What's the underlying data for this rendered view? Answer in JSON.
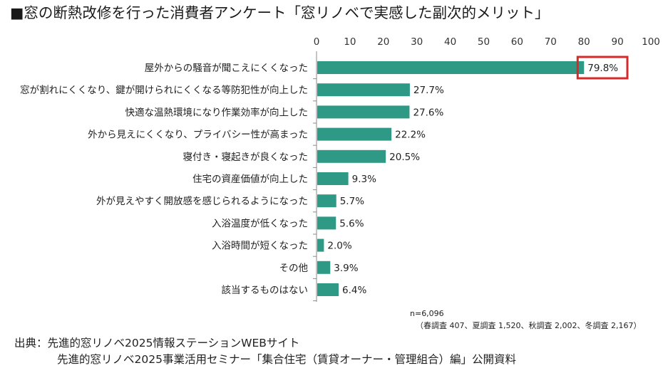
{
  "title": "■窓の断熱改修を行った消費者アンケート「窓リノベで実感した副次的メリット」",
  "note": {
    "n": "n=6,096",
    "breakdown": "（春調査 407、夏調査 1,520、秋調査 2,002、冬調査 2,167）"
  },
  "source": {
    "line1": "出典：先進的窓リノベ2025情報ステーションWEBサイト",
    "line2": "先進的窓リノベ2025事業活用セミナー「集合住宅（賃貸オーナー・管理組合）編」公開資料"
  },
  "colors": {
    "bar": "#2e9a85",
    "highlight": "#d42a2a",
    "axis": "#8a8a8a"
  },
  "chart_data": {
    "type": "bar",
    "orientation": "horizontal",
    "xlim": [
      0,
      100
    ],
    "xticks": [
      0,
      10,
      20,
      30,
      40,
      50,
      60,
      70,
      80,
      90,
      100
    ],
    "xtick_labels": [
      "0",
      "10",
      "20",
      "30",
      "40",
      "50",
      "60",
      "70",
      "80",
      "90",
      "100"
    ],
    "categories": [
      "屋外からの騒音が聞こえにくくなった",
      "窓が割れにくくなり、鍵が開けられにくくなる等防犯性が向上した",
      "快適な温熱環境になり作業効率が向上した",
      "外から見えにくくなり、プライバシー性が高まった",
      "寝付き・寝起きが良くなった",
      "住宅の資産価値が向上した",
      "外が見えやすく開放感を感じられるようになった",
      "入浴温度が低くなった",
      "入浴時間が短くなった",
      "その他",
      "該当するものはない"
    ],
    "values": [
      79.8,
      27.7,
      27.6,
      22.2,
      20.5,
      9.3,
      5.7,
      5.6,
      2.0,
      3.9,
      6.4
    ],
    "value_labels": [
      "79.8%",
      "27.7%",
      "27.6%",
      "22.2%",
      "20.5%",
      "9.3%",
      "5.7%",
      "5.6%",
      "2.0%",
      "3.9%",
      "6.4%"
    ],
    "highlight_index": 0
  }
}
